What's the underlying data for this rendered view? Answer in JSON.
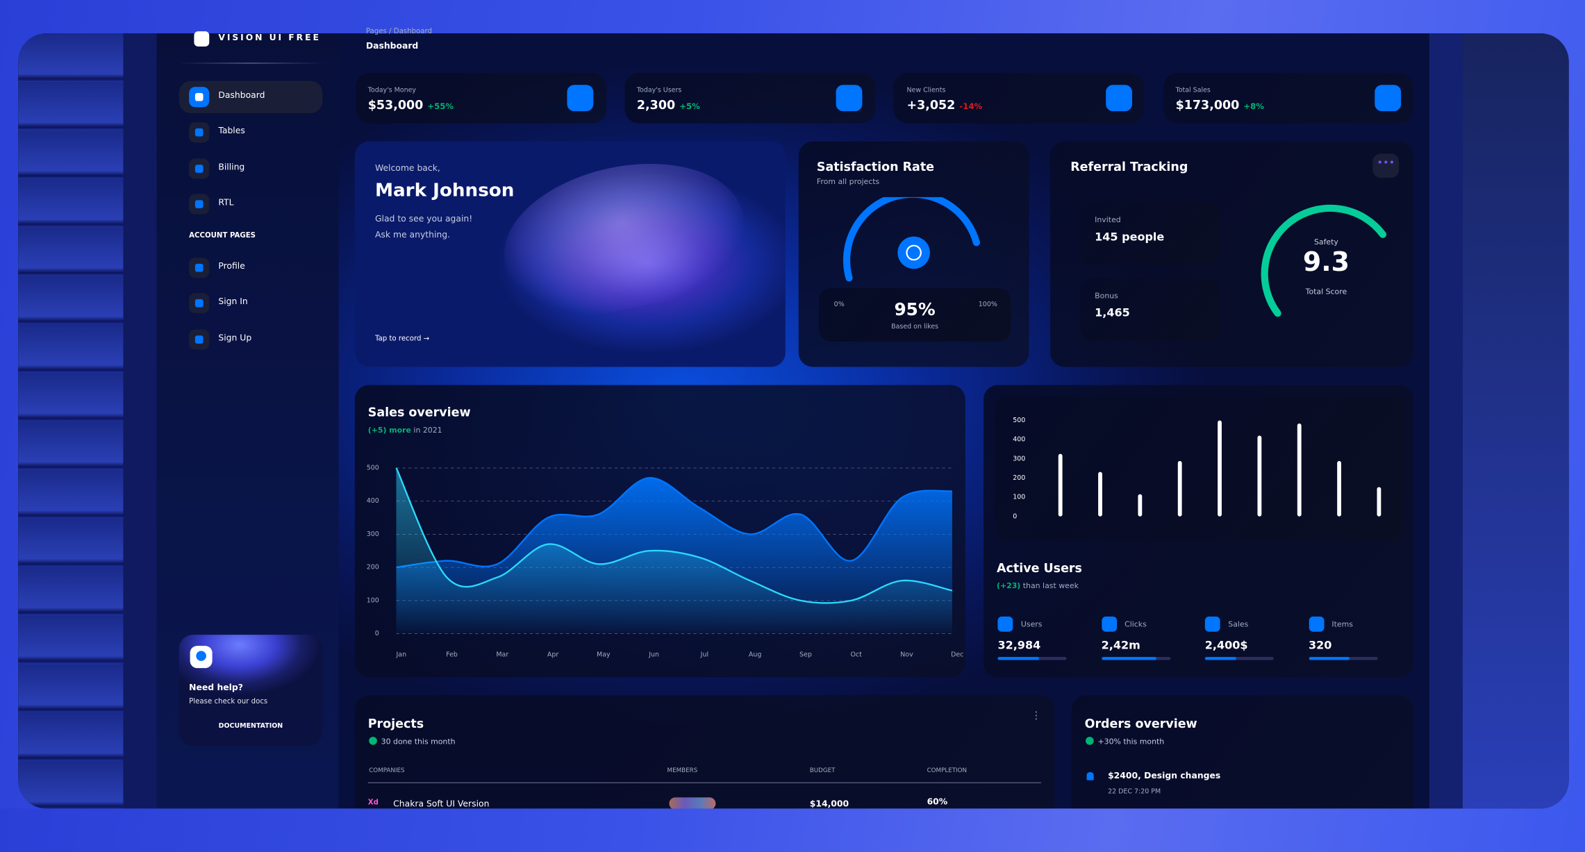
{
  "brand": "VISION UI FREE",
  "breadcrumb": "Pages / Dashboard",
  "page_title": "Dashboard",
  "sidebar": {
    "nav": [
      "Dashboard",
      "Tables",
      "Billing",
      "RTL"
    ],
    "section": "ACCOUNT PAGES",
    "account": [
      "Profile",
      "Sign In",
      "Sign Up"
    ],
    "help": {
      "title": "Need help?",
      "text": "Please check our docs",
      "button": "DOCUMENTATION"
    }
  },
  "stats": [
    {
      "label": "Today's Money",
      "value": "$53,000",
      "change": "+55%"
    },
    {
      "label": "Today's Users",
      "value": "2,300",
      "change": "+5%"
    },
    {
      "label": "New Clients",
      "value": "+3,052",
      "change": "-14%"
    },
    {
      "label": "Total Sales",
      "value": "$173,000",
      "change": "+8%"
    }
  ],
  "welcome": {
    "greeting": "Welcome back,",
    "name": "Mark Johnson",
    "line1": "Glad to see you again!",
    "line2": "Ask me anything.",
    "action": "Tap to record →"
  },
  "satisfaction": {
    "title": "Satisfaction Rate",
    "subtitle": "From all projects",
    "min": "0%",
    "value": "95%",
    "max": "100%",
    "caption": "Based on likes"
  },
  "referral": {
    "title": "Referral Tracking",
    "invited_label": "Invited",
    "invited": "145 people",
    "bonus_label": "Bonus",
    "bonus": "1,465",
    "score_label": "Safety",
    "score": "9.3",
    "score_caption": "Total Score"
  },
  "chart_data": [
    {
      "type": "line",
      "title": "Sales overview",
      "subtitle_highlight": "(+5) more",
      "subtitle": "in 2021",
      "categories": [
        "Jan",
        "Feb",
        "Mar",
        "Apr",
        "May",
        "Jun",
        "Jul",
        "Aug",
        "Sep",
        "Oct",
        "Nov",
        "Dec"
      ],
      "series": [
        {
          "color": "#0075ff",
          "values": [
            200,
            220,
            210,
            350,
            360,
            470,
            380,
            300,
            360,
            220,
            410,
            430
          ]
        },
        {
          "color": "#2cd9ff",
          "values": [
            500,
            170,
            170,
            270,
            210,
            250,
            230,
            160,
            100,
            100,
            160,
            130
          ]
        }
      ],
      "ylim": [
        0,
        500
      ],
      "yticks": [
        0,
        100,
        200,
        300,
        400,
        500
      ],
      "grid": true
    },
    {
      "type": "bar",
      "title": "Active Users",
      "subtitle_highlight": "(+23)",
      "subtitle": "than last week",
      "values": [
        326,
        232,
        116,
        289,
        500,
        421,
        484,
        289,
        153
      ],
      "color": "#ffffff",
      "ylim": [
        0,
        500
      ],
      "yticks": [
        0,
        100,
        200,
        300,
        400,
        500
      ],
      "grid": false
    }
  ],
  "active_users_items": [
    {
      "label": "Users",
      "value": "32,984"
    },
    {
      "label": "Clicks",
      "value": "2,42m"
    },
    {
      "label": "Sales",
      "value": "2,400$"
    },
    {
      "label": "Items",
      "value": "320"
    }
  ],
  "projects": {
    "title": "Projects",
    "subtitle": "30 done this month",
    "headers": [
      "COMPANIES",
      "MEMBERS",
      "BUDGET",
      "COMPLETION"
    ],
    "rows": [
      {
        "icon": "Xd",
        "company": "Chakra Soft UI Version",
        "budget": "$14,000",
        "completion": "60%"
      }
    ]
  },
  "orders": {
    "title": "Orders overview",
    "subtitle": "+30% this month",
    "items": [
      {
        "title": "$2400, Design changes",
        "date": "22 DEC 7:20 PM"
      }
    ]
  }
}
